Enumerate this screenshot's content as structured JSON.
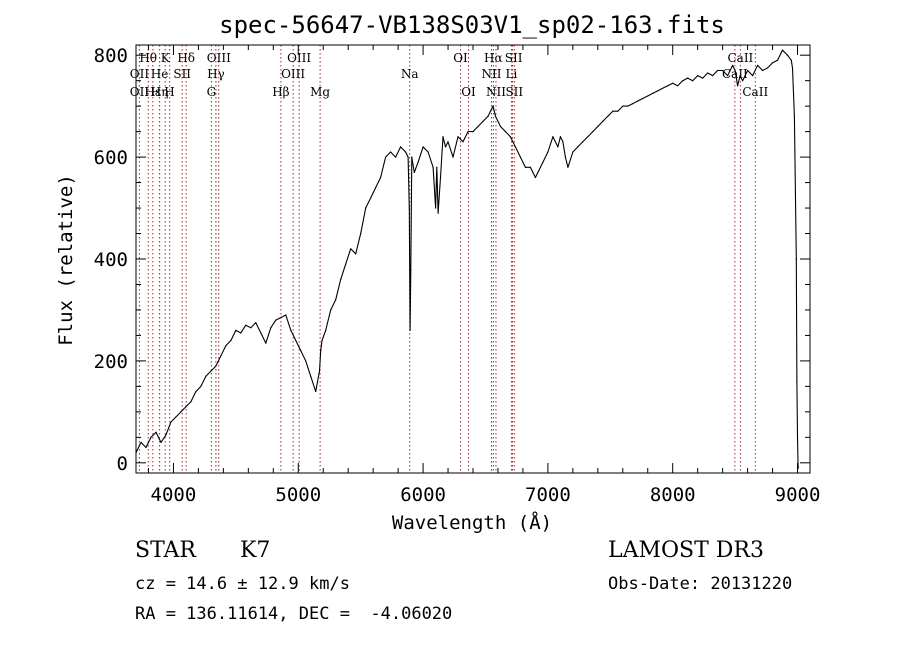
{
  "chart_data": {
    "type": "line",
    "title": "spec-56647-VB138S03V1_sp02-163.fits",
    "xlabel": "Wavelength (Å)",
    "ylabel": "Flux (relative)",
    "xlim": [
      3700,
      9100
    ],
    "ylim": [
      -20,
      820
    ],
    "x_ticks": [
      4000,
      5000,
      6000,
      7000,
      8000,
      9000
    ],
    "x_minor_step": 200,
    "y_ticks": [
      0,
      200,
      400,
      600,
      800
    ],
    "y_minor_step": 50,
    "series": [
      {
        "name": "flux",
        "color": "#000000",
        "x": [
          3700,
          3740,
          3780,
          3820,
          3860,
          3900,
          3940,
          3980,
          4020,
          4060,
          4100,
          4140,
          4180,
          4220,
          4260,
          4300,
          4340,
          4380,
          4420,
          4460,
          4500,
          4540,
          4580,
          4620,
          4660,
          4700,
          4740,
          4780,
          4820,
          4860,
          4900,
          4940,
          4980,
          5020,
          5060,
          5100,
          5140,
          5170,
          5180,
          5190,
          5220,
          5260,
          5300,
          5340,
          5380,
          5420,
          5460,
          5500,
          5540,
          5580,
          5620,
          5660,
          5700,
          5740,
          5780,
          5820,
          5860,
          5880,
          5890,
          5896,
          5902,
          5910,
          5930,
          5960,
          6000,
          6040,
          6080,
          6100,
          6110,
          6120,
          6140,
          6160,
          6180,
          6200,
          6240,
          6280,
          6320,
          6360,
          6400,
          6440,
          6480,
          6520,
          6540,
          6560,
          6580,
          6620,
          6660,
          6700,
          6740,
          6780,
          6820,
          6860,
          6880,
          6900,
          6920,
          6960,
          7000,
          7040,
          7080,
          7100,
          7120,
          7140,
          7160,
          7200,
          7240,
          7280,
          7320,
          7360,
          7400,
          7440,
          7480,
          7520,
          7560,
          7600,
          7640,
          7680,
          7720,
          7760,
          7800,
          7840,
          7880,
          7920,
          7960,
          8000,
          8040,
          8080,
          8120,
          8160,
          8200,
          8240,
          8280,
          8320,
          8360,
          8400,
          8440,
          8480,
          8500,
          8520,
          8540,
          8560,
          8600,
          8640,
          8680,
          8720,
          8760,
          8800,
          8840,
          8880,
          8920,
          8950,
          8960,
          8975,
          8990,
          8995,
          9000,
          9005,
          9008
        ],
        "y": [
          20,
          40,
          30,
          50,
          60,
          40,
          55,
          80,
          90,
          100,
          110,
          120,
          140,
          150,
          170,
          180,
          190,
          210,
          230,
          240,
          260,
          255,
          270,
          265,
          275,
          255,
          235,
          265,
          280,
          285,
          290,
          260,
          240,
          220,
          200,
          170,
          140,
          180,
          220,
          240,
          260,
          300,
          320,
          360,
          390,
          420,
          410,
          450,
          500,
          520,
          540,
          560,
          600,
          610,
          600,
          620,
          610,
          600,
          500,
          260,
          380,
          600,
          570,
          590,
          620,
          610,
          580,
          500,
          580,
          490,
          560,
          640,
          620,
          630,
          600,
          640,
          630,
          650,
          650,
          660,
          670,
          680,
          690,
          700,
          680,
          660,
          650,
          640,
          620,
          600,
          580,
          580,
          570,
          560,
          570,
          590,
          610,
          640,
          620,
          640,
          630,
          600,
          580,
          610,
          620,
          630,
          640,
          650,
          660,
          670,
          680,
          690,
          690,
          700,
          700,
          705,
          710,
          715,
          720,
          725,
          730,
          735,
          740,
          745,
          740,
          750,
          755,
          750,
          760,
          755,
          765,
          760,
          770,
          770,
          760,
          780,
          770,
          740,
          760,
          750,
          770,
          760,
          780,
          770,
          775,
          785,
          790,
          810,
          800,
          790,
          775,
          680,
          400,
          160,
          50,
          -10,
          -10
        ]
      }
    ],
    "line_groups": [
      {
        "row": 1,
        "items": [
          {
            "label": "Hθ",
            "label_x": 3798,
            "lines": [
              3798
            ]
          },
          {
            "label": "K",
            "label_x": 3934,
            "lines": [
              3934
            ]
          },
          {
            "label": "Hδ",
            "label_x": 4102,
            "lines": [
              4102
            ]
          },
          {
            "label": "OIII",
            "label_x": 4363,
            "lines": [
              4363
            ]
          },
          {
            "label": "OIII",
            "label_x": 5007,
            "lines": [
              4959,
              5007
            ]
          },
          {
            "label": "OI",
            "label_x": 6300,
            "lines": [
              6300
            ]
          },
          {
            "label": "Hα",
            "label_x": 6563,
            "lines": [
              6563
            ]
          },
          {
            "label": "SII",
            "label_x": 6725,
            "lines": [
              6717,
              6731
            ]
          },
          {
            "label": "CaII",
            "label_x": 8542,
            "lines": [
              8542
            ]
          }
        ]
      },
      {
        "row": 2,
        "items": [
          {
            "label": "OII",
            "label_x": 3727,
            "lines": [
              3727
            ]
          },
          {
            "label": "He",
            "label_x": 3889,
            "lines": [
              3889
            ]
          },
          {
            "label": "SII",
            "label_x": 4070,
            "lines": [
              4070
            ]
          },
          {
            "label": "Hγ",
            "label_x": 4340,
            "lines": [
              4340
            ]
          },
          {
            "label": "OIII",
            "label_x": 4959,
            "lines": []
          },
          {
            "label": "Na",
            "label_x": 5893,
            "lines": [
              5893
            ]
          },
          {
            "label": "NII",
            "label_x": 6548,
            "lines": [
              6548
            ]
          },
          {
            "label": "Li",
            "label_x": 6708,
            "lines": [
              6708
            ]
          },
          {
            "label": "CaII",
            "label_x": 8498,
            "lines": [
              8498
            ]
          }
        ]
      },
      {
        "row": 3,
        "items": [
          {
            "label": "OII",
            "label_x": 3727,
            "lines": []
          },
          {
            "label": "Hε",
            "label_x": 3835,
            "lines": [
              3835,
              3970
            ]
          },
          {
            "label": "Hη",
            "label_x": 3889,
            "lines": []
          },
          {
            "label": "H",
            "label_x": 3968,
            "lines": []
          },
          {
            "label": "G",
            "label_x": 4304,
            "lines": [
              4304
            ]
          },
          {
            "label": "Hβ",
            "label_x": 4861,
            "lines": [
              4861
            ]
          },
          {
            "label": "Mg",
            "label_x": 5175,
            "lines": [
              5175
            ]
          },
          {
            "label": "OI",
            "label_x": 6364,
            "lines": [
              6364
            ]
          },
          {
            "label": "NII",
            "label_x": 6584,
            "lines": [
              6584
            ]
          },
          {
            "label": "SII",
            "label_x": 6731,
            "lines": []
          },
          {
            "label": "CaII",
            "label_x": 8662,
            "lines": [
              8662
            ]
          }
        ]
      }
    ],
    "marker_color": "#b22222"
  },
  "info": {
    "object_type": "STAR",
    "subclass": "K7",
    "survey": "LAMOST DR3",
    "redshift": "cz = 14.6 ± 12.9 km/s",
    "obs_date": "Obs-Date: 20131220",
    "coords": "RA = 136.11614, DEC =  -4.06020"
  }
}
